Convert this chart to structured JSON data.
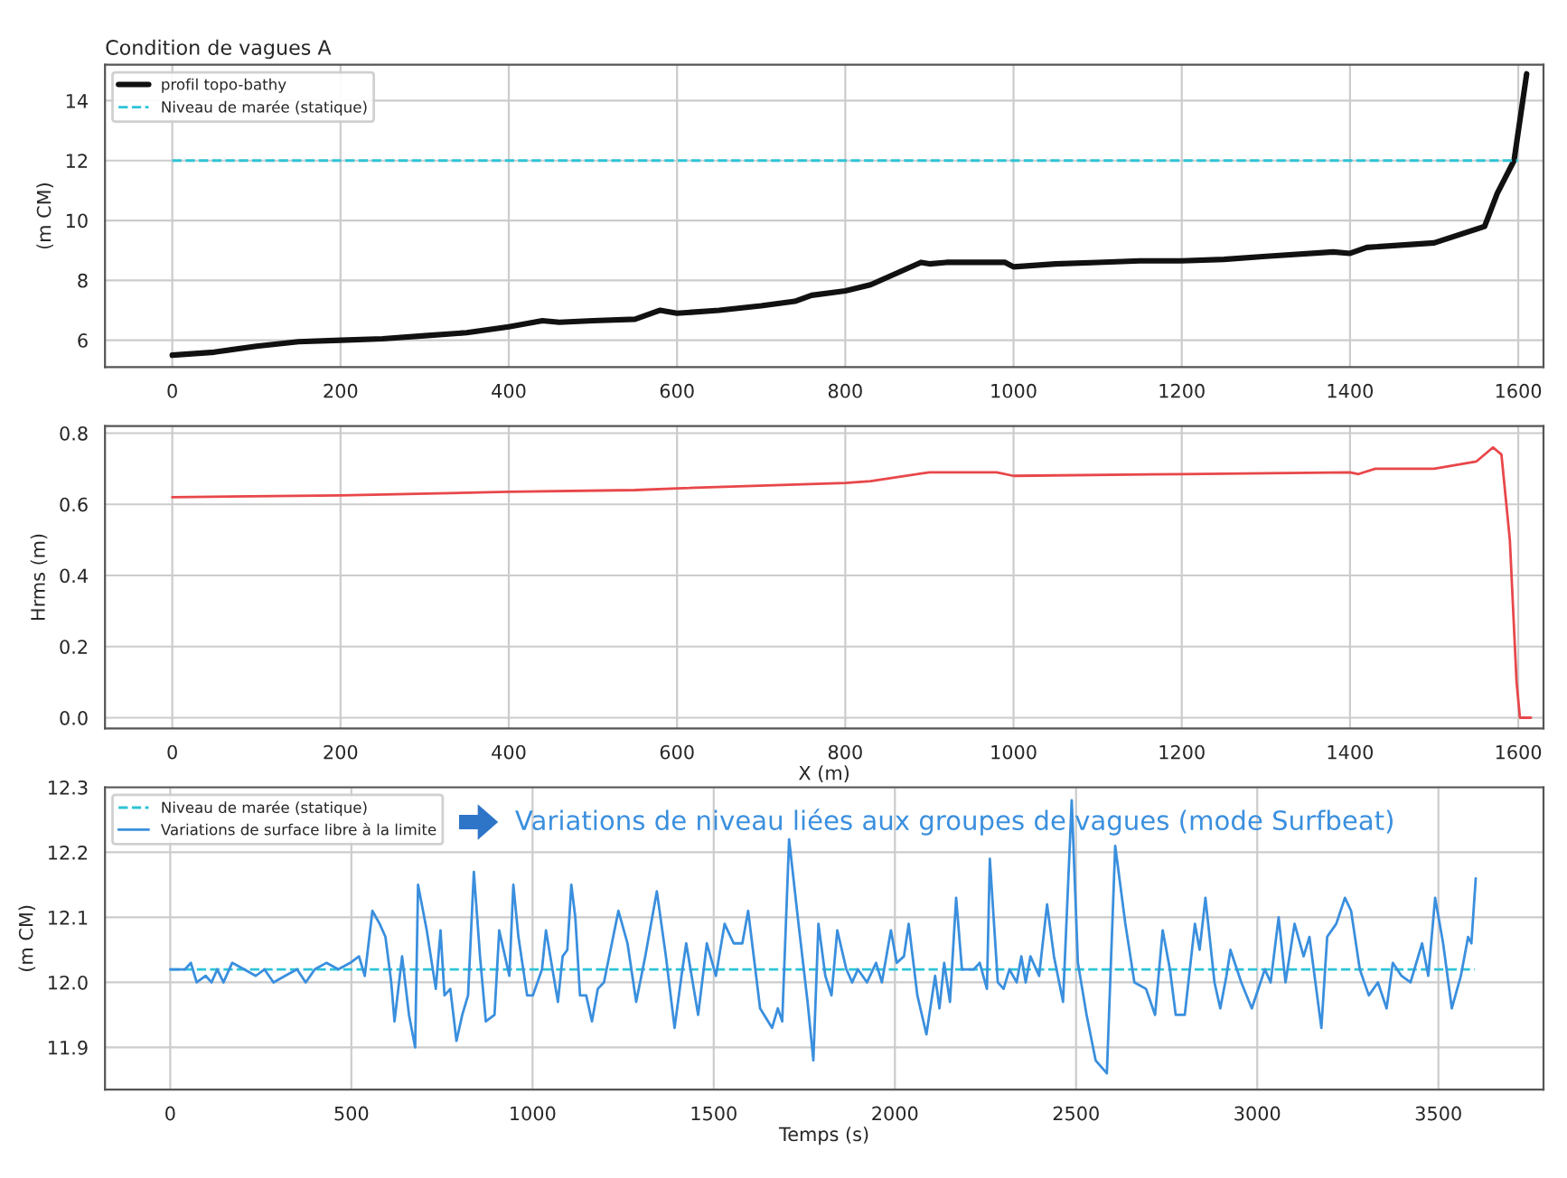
{
  "chart_data": [
    {
      "type": "line",
      "title": "Condition de vagues A",
      "ylabel": "(m CM)",
      "xlim": [
        -80,
        1630
      ],
      "xticks": [
        0,
        200,
        400,
        600,
        800,
        1000,
        1200,
        1400,
        1600
      ],
      "ylim": [
        5.1,
        15.2
      ],
      "yticks": [
        6,
        8,
        10,
        12,
        14
      ],
      "grid": true,
      "legend": "top left",
      "series": [
        {
          "name": "profil topo-bathy",
          "color": "#111111",
          "line_style": "solid",
          "x": [
            0,
            50,
            100,
            150,
            200,
            250,
            300,
            350,
            400,
            440,
            460,
            500,
            550,
            580,
            600,
            650,
            700,
            740,
            760,
            800,
            830,
            850,
            890,
            900,
            920,
            990,
            1000,
            1050,
            1100,
            1150,
            1200,
            1250,
            1300,
            1380,
            1400,
            1420,
            1500,
            1560,
            1575,
            1595,
            1610
          ],
          "values": [
            5.5,
            5.6,
            5.8,
            5.95,
            6.0,
            6.05,
            6.15,
            6.25,
            6.45,
            6.65,
            6.6,
            6.65,
            6.7,
            7.0,
            6.9,
            7.0,
            7.15,
            7.3,
            7.5,
            7.65,
            7.85,
            8.1,
            8.6,
            8.55,
            8.6,
            8.6,
            8.45,
            8.55,
            8.6,
            8.65,
            8.65,
            8.7,
            8.8,
            8.95,
            8.9,
            9.1,
            9.25,
            9.8,
            10.9,
            12.0,
            14.9
          ]
        },
        {
          "name": "Niveau de marée (statique)",
          "color": "#2ec4d6",
          "line_style": "dashed",
          "x": [
            0,
            1600
          ],
          "values": [
            12,
            12
          ]
        }
      ]
    },
    {
      "type": "line",
      "ylabel": "Hrms (m)",
      "xlabel": "X (m)",
      "xlim": [
        -80,
        1630
      ],
      "xticks": [
        0,
        200,
        400,
        600,
        800,
        1000,
        1200,
        1400,
        1600
      ],
      "ylim": [
        -0.03,
        0.82
      ],
      "yticks": [
        {
          "value": 0,
          "label": "0.0"
        },
        0.2,
        0.4,
        0.6,
        0.8
      ],
      "grid": true,
      "series": [
        {
          "color": "#e8474a",
          "line_style": "solid",
          "x": [
            0,
            200,
            400,
            550,
            600,
            800,
            830,
            900,
            980,
            1000,
            1200,
            1400,
            1410,
            1430,
            1500,
            1550,
            1570,
            1580,
            1590,
            1598,
            1602,
            1615
          ],
          "values": [
            0.62,
            0.625,
            0.635,
            0.64,
            0.645,
            0.66,
            0.665,
            0.69,
            0.69,
            0.68,
            0.685,
            0.69,
            0.685,
            0.7,
            0.7,
            0.72,
            0.76,
            0.74,
            0.5,
            0.1,
            0.0,
            0.0
          ]
        }
      ]
    },
    {
      "type": "line",
      "ylabel": "(m CM)",
      "xlabel": "Temps (s)",
      "xlim": [
        -180,
        3790
      ],
      "xticks": [
        0,
        500,
        1000,
        1500,
        2000,
        2500,
        3000,
        3500
      ],
      "ylim": [
        11.835,
        12.3
      ],
      "yticks": [
        11.9,
        {
          "value": 12,
          "label": "12.0"
        },
        12.1,
        12.2,
        12.3
      ],
      "grid": true,
      "legend": "top left",
      "annotations": [
        "Variations de niveau liées aux groupes de vagues (mode Surfbeat)"
      ],
      "series": [
        {
          "name": "Niveau de marée (statique)",
          "color": "#2ec4d6",
          "line_style": "dashed",
          "x": [
            0,
            3600
          ],
          "values": [
            12.02,
            12.02
          ]
        },
        {
          "name": "Variations de surface libre à la limite",
          "color": "#3a8fde",
          "line_style": "solid",
          "x": [
            0,
            41,
            57,
            73,
            98,
            114,
            130,
            147,
            171,
            204,
            236,
            260,
            285,
            317,
            350,
            374,
            399,
            431,
            464,
            497,
            521,
            537,
            558,
            578,
            594,
            610,
            619,
            640,
            659,
            676,
            684,
            708,
            733,
            746,
            757,
            773,
            790,
            806,
            822,
            838,
            855,
            871,
            895,
            908,
            920,
            936,
            947,
            961,
            985,
            1001,
            1026,
            1037,
            1058,
            1070,
            1083,
            1096,
            1107,
            1118,
            1131,
            1148,
            1164,
            1180,
            1197,
            1237,
            1262,
            1286,
            1311,
            1343,
            1368,
            1392,
            1411,
            1424,
            1457,
            1481,
            1506,
            1530,
            1555,
            1579,
            1595,
            1628,
            1661,
            1677,
            1689,
            1708,
            1734,
            1759,
            1775,
            1789,
            1808,
            1825,
            1841,
            1866,
            1882,
            1898,
            1923,
            1948,
            1964,
            1989,
            2005,
            2025,
            2038,
            2062,
            2087,
            2111,
            2123,
            2136,
            2152,
            2169,
            2185,
            2218,
            2234,
            2254,
            2262,
            2284,
            2300,
            2316,
            2336,
            2349,
            2361,
            2374,
            2398,
            2420,
            2439,
            2464,
            2488,
            2505,
            2529,
            2554,
            2585,
            2608,
            2636,
            2661,
            2693,
            2718,
            2739,
            2759,
            2775,
            2800,
            2828,
            2841,
            2857,
            2882,
            2898,
            2915,
            2926,
            2956,
            2985,
            3021,
            3037,
            3059,
            3078,
            3103,
            3128,
            3144,
            3177,
            3193,
            3218,
            3242,
            3259,
            3283,
            3308,
            3333,
            3357,
            3374,
            3398,
            3423,
            3455,
            3472,
            3491,
            3513,
            3537,
            3562,
            3582,
            3591,
            3603
          ],
          "values": [
            12.02,
            12.02,
            12.03,
            12.0,
            12.01,
            12.0,
            12.02,
            12.0,
            12.03,
            12.02,
            12.01,
            12.02,
            12.0,
            12.01,
            12.02,
            12.0,
            12.02,
            12.03,
            12.02,
            12.03,
            12.04,
            12.01,
            12.11,
            12.09,
            12.07,
            12.0,
            11.94,
            12.04,
            11.95,
            11.9,
            12.15,
            12.08,
            11.99,
            12.08,
            11.98,
            11.99,
            11.91,
            11.95,
            11.98,
            12.17,
            12.04,
            11.94,
            11.95,
            12.08,
            12.05,
            12.01,
            12.15,
            12.07,
            11.98,
            11.98,
            12.02,
            12.08,
            12.01,
            11.97,
            12.04,
            12.05,
            12.15,
            12.1,
            11.98,
            11.98,
            11.94,
            11.99,
            12.0,
            12.11,
            12.06,
            11.97,
            12.04,
            12.14,
            12.04,
            11.93,
            12.01,
            12.06,
            11.95,
            12.06,
            12.01,
            12.09,
            12.06,
            12.06,
            12.11,
            11.96,
            11.93,
            11.96,
            11.94,
            12.22,
            12.09,
            11.97,
            11.88,
            12.09,
            12.01,
            11.98,
            12.08,
            12.02,
            12.0,
            12.02,
            12.0,
            12.03,
            12.0,
            12.08,
            12.03,
            12.04,
            12.09,
            11.98,
            11.92,
            12.01,
            11.96,
            12.03,
            11.97,
            12.13,
            12.02,
            12.02,
            12.03,
            11.99,
            12.19,
            12.0,
            11.99,
            12.02,
            12.0,
            12.04,
            12.0,
            12.04,
            12.01,
            12.12,
            12.04,
            11.97,
            12.28,
            12.03,
            11.95,
            11.88,
            11.86,
            12.21,
            12.09,
            12.0,
            11.99,
            11.95,
            12.08,
            12.02,
            11.95,
            11.95,
            12.09,
            12.05,
            12.13,
            12.0,
            11.96,
            12.01,
            12.05,
            12.0,
            11.96,
            12.02,
            12.0,
            12.1,
            12.0,
            12.09,
            12.04,
            12.07,
            11.93,
            12.07,
            12.09,
            12.13,
            12.11,
            12.02,
            11.98,
            12.0,
            11.96,
            12.03,
            12.01,
            12.0,
            12.06,
            12.01,
            12.13,
            12.06,
            11.96,
            12.01,
            12.07,
            12.06,
            12.16
          ]
        }
      ]
    }
  ]
}
